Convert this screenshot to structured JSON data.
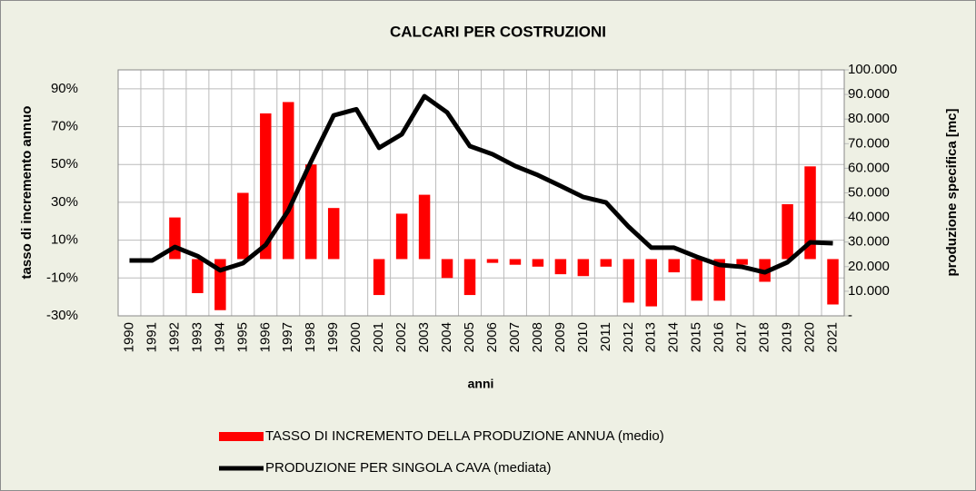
{
  "chart_data": {
    "type": "bar",
    "title": "CALCARI PER COSTRUZIONI",
    "x_label": "anni",
    "y_label": "tasso di incremento annuo",
    "y2_label": "produzione specifica [mc]",
    "categories": [
      "1990",
      "1991",
      "1992",
      "1993",
      "1994",
      "1995",
      "1996",
      "1997",
      "1998",
      "1999",
      "2000",
      "2001",
      "2002",
      "2003",
      "2004",
      "2005",
      "2006",
      "2007",
      "2008",
      "2009",
      "2010",
      "2011",
      "2012",
      "2013",
      "2014",
      "2015",
      "2016",
      "2017",
      "2018",
      "2019",
      "2020",
      "2021"
    ],
    "series": [
      {
        "name": "TASSO DI INCREMENTO DELLA PRODUZIONE ANNUA (medio)",
        "type": "bar",
        "color": "#ff0000",
        "values": [
          0,
          0,
          22,
          -18,
          -27,
          35,
          77,
          83,
          50,
          27,
          0,
          -19,
          24,
          34,
          -10,
          -19,
          -2,
          -3,
          -4,
          -8,
          -9,
          -4,
          -23,
          -25,
          -7,
          -22,
          -22,
          -3,
          -12,
          29,
          49,
          -24
        ]
      },
      {
        "name": "PRODUZIONE  PER SINGOLA CAVA  (mediata)",
        "type": "line",
        "color": "#000000",
        "axis": "y2",
        "values": [
          22500,
          22500,
          28000,
          24300,
          18500,
          21400,
          28800,
          42800,
          62700,
          81500,
          84000,
          68300,
          73800,
          89300,
          82700,
          69000,
          65700,
          60900,
          57200,
          52800,
          48300,
          46100,
          36200,
          27700,
          27700,
          24000,
          20700,
          19900,
          17700,
          21800,
          29900,
          29500
        ]
      }
    ],
    "ylim": [
      -30,
      100
    ],
    "yticks": [
      {
        "value": -30,
        "label": "-30%"
      },
      {
        "value": -10,
        "label": "-10%"
      },
      {
        "value": 10,
        "label": "10%"
      },
      {
        "value": 30,
        "label": "30%"
      },
      {
        "value": 50,
        "label": "50%"
      },
      {
        "value": 70,
        "label": "70%"
      },
      {
        "value": 90,
        "label": "90%"
      }
    ],
    "y2lim": [
      0,
      100000
    ],
    "y2ticks": [
      {
        "value": 0,
        "label": "-"
      },
      {
        "value": 10000,
        "label": "10.000"
      },
      {
        "value": 20000,
        "label": "20.000"
      },
      {
        "value": 30000,
        "label": "30.000"
      },
      {
        "value": 40000,
        "label": "40.000"
      },
      {
        "value": 50000,
        "label": "50.000"
      },
      {
        "value": 60000,
        "label": "60.000"
      },
      {
        "value": 70000,
        "label": "70.000"
      },
      {
        "value": 80000,
        "label": "80.000"
      },
      {
        "value": 90000,
        "label": "90.000"
      },
      {
        "value": 100000,
        "label": "100.000"
      }
    ],
    "grid": true,
    "legend": "bottom"
  }
}
